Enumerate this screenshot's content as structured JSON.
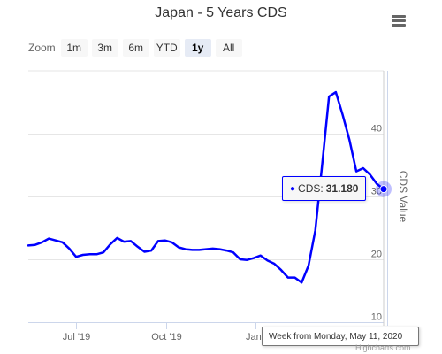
{
  "chart_data": {
    "type": "line",
    "title": "Japan - 5 Years CDS",
    "ylabel": "CDS Value",
    "xlabel": "",
    "ylim": [
      10,
      50
    ],
    "yticks": [
      10,
      20,
      30,
      40
    ],
    "ytick_labels": [
      "10",
      "20",
      "30",
      "40"
    ],
    "xticks": [
      "2019-07-01",
      "2019-10-01",
      "2020-01-01"
    ],
    "xtick_labels": [
      "Jul '19",
      "Oct '19",
      "Jan '"
    ],
    "grid": true,
    "legend": false,
    "series": [
      {
        "color": "#0000ff",
        "points": [
          [
            "2019-05-13",
            22.2
          ],
          [
            "2019-05-20",
            22.3
          ],
          [
            "2019-05-27",
            22.7
          ],
          [
            "2019-06-03",
            23.3
          ],
          [
            "2019-06-10",
            23.0
          ],
          [
            "2019-06-17",
            22.7
          ],
          [
            "2019-06-24",
            21.7
          ],
          [
            "2019-07-01",
            20.4
          ],
          [
            "2019-07-08",
            20.7
          ],
          [
            "2019-07-15",
            20.8
          ],
          [
            "2019-07-22",
            20.8
          ],
          [
            "2019-07-29",
            21.1
          ],
          [
            "2019-08-05",
            22.4
          ],
          [
            "2019-08-12",
            23.4
          ],
          [
            "2019-08-19",
            22.8
          ],
          [
            "2019-08-26",
            22.9
          ],
          [
            "2019-09-02",
            22.0
          ],
          [
            "2019-09-09",
            21.2
          ],
          [
            "2019-09-16",
            21.4
          ],
          [
            "2019-09-23",
            22.9
          ],
          [
            "2019-09-30",
            23.0
          ],
          [
            "2019-10-07",
            22.7
          ],
          [
            "2019-10-14",
            21.9
          ],
          [
            "2019-10-21",
            21.6
          ],
          [
            "2019-10-28",
            21.5
          ],
          [
            "2019-11-04",
            21.5
          ],
          [
            "2019-11-11",
            21.6
          ],
          [
            "2019-11-18",
            21.7
          ],
          [
            "2019-11-25",
            21.6
          ],
          [
            "2019-12-02",
            21.4
          ],
          [
            "2019-12-09",
            21.1
          ],
          [
            "2019-12-16",
            20.0
          ],
          [
            "2019-12-23",
            19.9
          ],
          [
            "2019-12-30",
            20.2
          ],
          [
            "2020-01-06",
            20.6
          ],
          [
            "2020-01-13",
            19.8
          ],
          [
            "2020-01-20",
            19.3
          ],
          [
            "2020-01-27",
            18.3
          ],
          [
            "2020-02-03",
            17.1
          ],
          [
            "2020-02-10",
            17.1
          ],
          [
            "2020-02-17",
            16.3
          ],
          [
            "2020-02-24",
            19.0
          ],
          [
            "2020-03-02",
            24.6
          ],
          [
            "2020-03-09",
            35.0
          ],
          [
            "2020-03-16",
            45.9
          ],
          [
            "2020-03-23",
            46.6
          ],
          [
            "2020-03-30",
            43.0
          ],
          [
            "2020-04-06",
            39.0
          ],
          [
            "2020-04-13",
            34.0
          ],
          [
            "2020-04-20",
            34.5
          ],
          [
            "2020-04-27",
            33.5
          ],
          [
            "2020-05-04",
            32.0
          ],
          [
            "2020-05-11",
            31.18
          ]
        ]
      }
    ],
    "tooltip": {
      "label": "CDS:",
      "value": "31.180",
      "header": "Week from Monday, May 11, 2020"
    }
  },
  "title": "Japan - 5 Years CDS",
  "zoom": {
    "label": "Zoom",
    "buttons": [
      "1m",
      "3m",
      "6m",
      "YTD",
      "1y",
      "All"
    ],
    "selected": "1y"
  },
  "menu_icon": "hamburger-menu-icon",
  "credits": "Highcharts.com",
  "colors": {
    "series": "#0000ff",
    "grid": "#e6e6e6",
    "axis": "#ccd6eb",
    "active_button": "#e6ebf5"
  }
}
